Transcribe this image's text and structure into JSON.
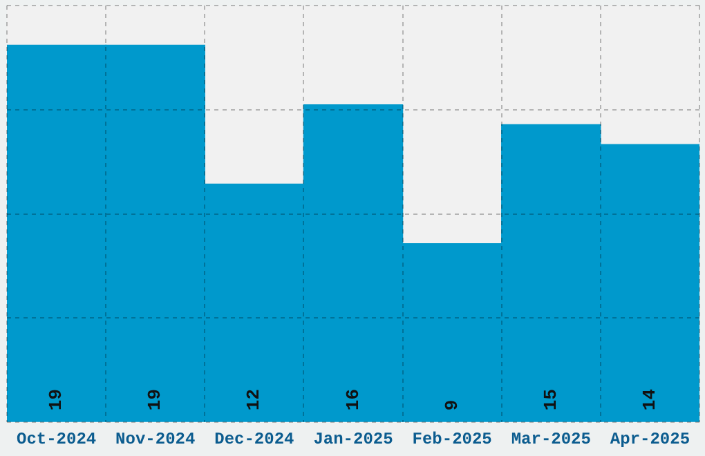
{
  "chart_data": {
    "type": "bar",
    "categories": [
      "Oct-2024",
      "Nov-2024",
      "Dec-2024",
      "Jan-2025",
      "Feb-2025",
      "Mar-2025",
      "Apr-2025"
    ],
    "values": [
      19,
      19,
      12,
      16,
      9,
      15,
      14
    ],
    "color": "#0099cc",
    "data_labels": true,
    "ylim": [
      0,
      21
    ],
    "yticks": [
      {
        "value": 0,
        "label": null
      },
      {
        "value": 5.25,
        "label": null
      },
      {
        "value": 10.5,
        "label": null
      },
      {
        "value": 15.75,
        "label": null
      },
      {
        "value": 21,
        "label": null
      }
    ],
    "tick_labels": "x",
    "grid": true
  }
}
